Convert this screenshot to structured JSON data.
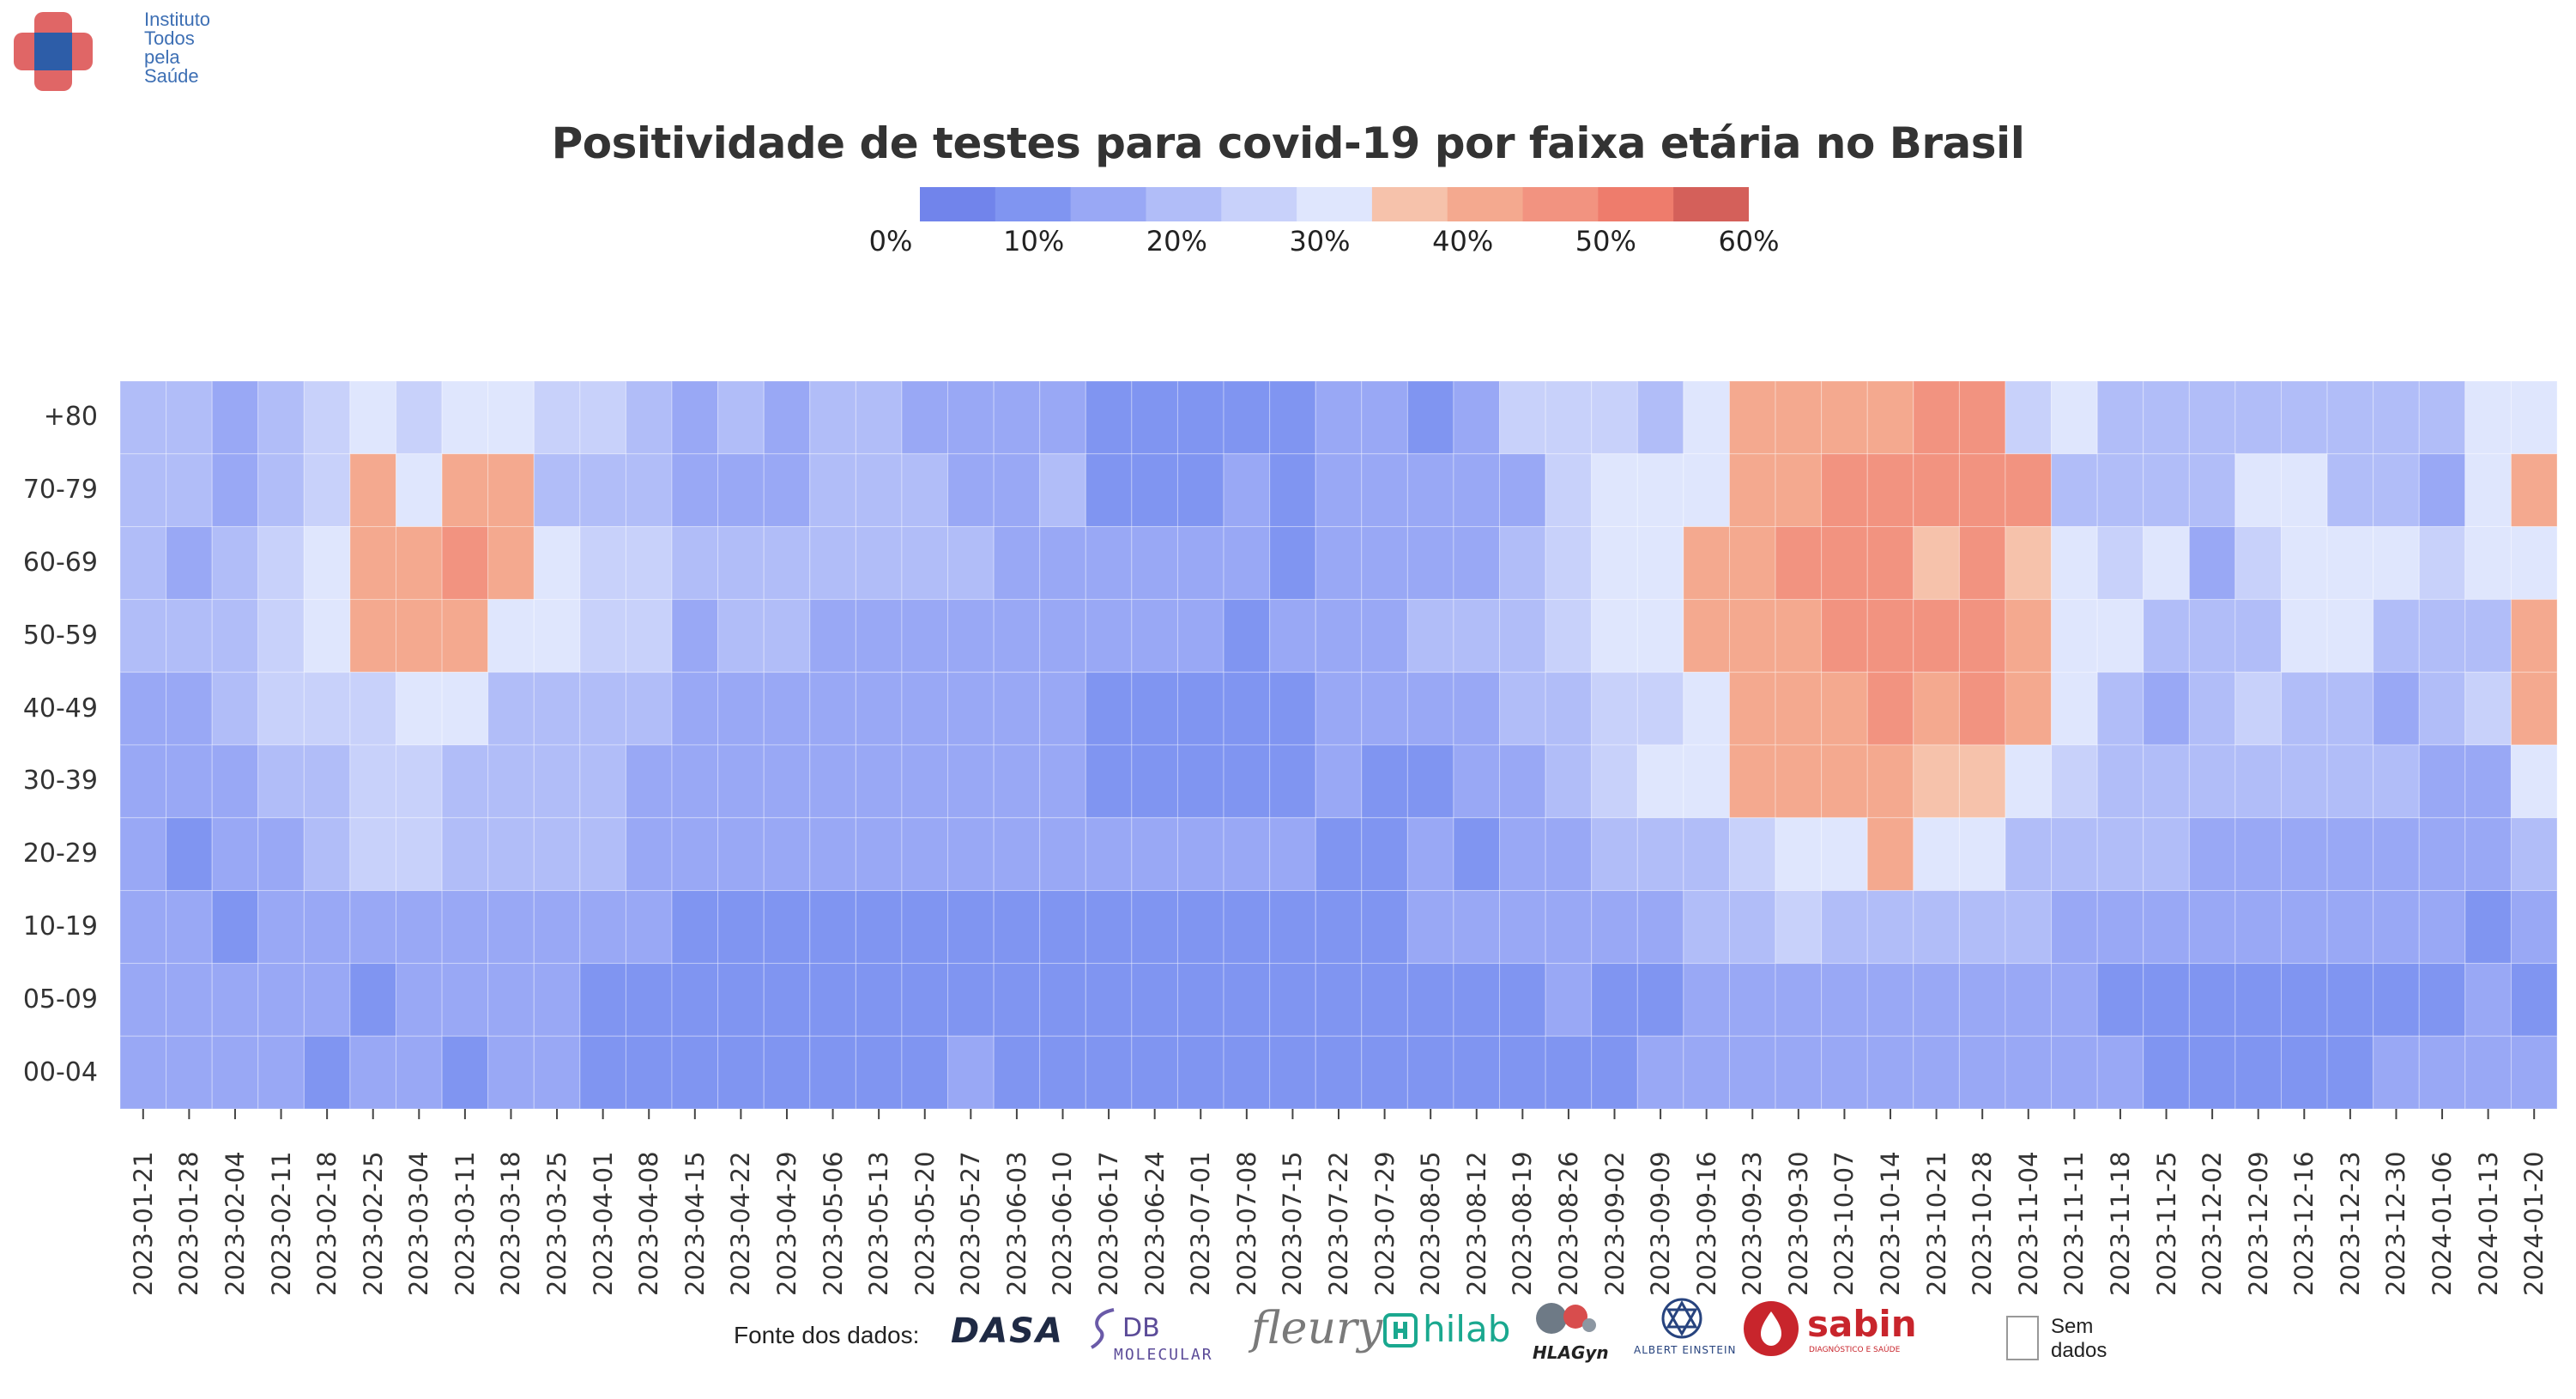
{
  "logo": {
    "lines": [
      "Instituto",
      "Todos",
      "pela",
      "Saúde"
    ],
    "colors": {
      "red": "#e06666",
      "blue": "#2d5da8"
    }
  },
  "chart_data": {
    "type": "heatmap",
    "title": "Positividade de testes para covid-19 por faixa etária no Brasil",
    "xlabel": "",
    "ylabel": "",
    "x": [
      "2023-01-21",
      "2023-01-28",
      "2023-02-04",
      "2023-02-11",
      "2023-02-18",
      "2023-02-25",
      "2023-03-04",
      "2023-03-11",
      "2023-03-18",
      "2023-03-25",
      "2023-04-01",
      "2023-04-08",
      "2023-04-15",
      "2023-04-22",
      "2023-04-29",
      "2023-05-06",
      "2023-05-13",
      "2023-05-20",
      "2023-05-27",
      "2023-06-03",
      "2023-06-10",
      "2023-06-17",
      "2023-06-24",
      "2023-07-01",
      "2023-07-08",
      "2023-07-15",
      "2023-07-22",
      "2023-07-29",
      "2023-08-05",
      "2023-08-12",
      "2023-08-19",
      "2023-08-26",
      "2023-09-02",
      "2023-09-09",
      "2023-09-16",
      "2023-09-23",
      "2023-09-30",
      "2023-10-07",
      "2023-10-14",
      "2023-10-21",
      "2023-10-28",
      "2023-11-04",
      "2023-11-11",
      "2023-11-18",
      "2023-11-25",
      "2023-12-02",
      "2023-12-09",
      "2023-12-16",
      "2023-12-23",
      "2023-12-30",
      "2024-01-06",
      "2024-01-13",
      "2024-01-20"
    ],
    "y": [
      "+80",
      "70-79",
      "60-69",
      "50-59",
      "40-49",
      "30-39",
      "20-29",
      "10-19",
      "05-09",
      "00-04"
    ],
    "values": [
      [
        17,
        17,
        16,
        21,
        23,
        28,
        27,
        28,
        29,
        27,
        24,
        20,
        15,
        18,
        14,
        17,
        18,
        16,
        14,
        14,
        13,
        9,
        9,
        9,
        8,
        9,
        12,
        13,
        8,
        11,
        25,
        24,
        23,
        18,
        29,
        41,
        39,
        39,
        39,
        44,
        44,
        22,
        29,
        21,
        17,
        20,
        20,
        19,
        20,
        20,
        17,
        29,
        29
      ],
      [
        17,
        17,
        16,
        17,
        22,
        40,
        29,
        40,
        40,
        20,
        17,
        18,
        16,
        13,
        13,
        17,
        18,
        18,
        16,
        16,
        17,
        9,
        9,
        9,
        11,
        9,
        12,
        12,
        14,
        14,
        16,
        25,
        30,
        30,
        30,
        42,
        42,
        44,
        44,
        45,
        49,
        45,
        20,
        18,
        20,
        20,
        28,
        28,
        21,
        19,
        16,
        28,
        40
      ],
      [
        17,
        16,
        17,
        22,
        29,
        39,
        39,
        46,
        41,
        28,
        22,
        22,
        18,
        18,
        17,
        17,
        17,
        17,
        17,
        16,
        16,
        16,
        12,
        12,
        13,
        8,
        12,
        14,
        13,
        13,
        17,
        25,
        30,
        30,
        39,
        43,
        47,
        48,
        48,
        37,
        44,
        38,
        28,
        22,
        28,
        16,
        24,
        28,
        28,
        28,
        25,
        28,
        29
      ],
      [
        17,
        17,
        21,
        22,
        29,
        39,
        39,
        41,
        28,
        28,
        24,
        23,
        16,
        17,
        17,
        16,
        13,
        14,
        16,
        14,
        16,
        12,
        12,
        13,
        9,
        13,
        12,
        14,
        19,
        19,
        21,
        25,
        28,
        28,
        39,
        40,
        43,
        47,
        46,
        44,
        44,
        40,
        29,
        29,
        21,
        20,
        21,
        28,
        28,
        20,
        19,
        21,
        40
      ],
      [
        14,
        15,
        17,
        22,
        22,
        27,
        28,
        28,
        21,
        21,
        19,
        19,
        16,
        15,
        15,
        15,
        15,
        14,
        12,
        12,
        13,
        9,
        9,
        9,
        9,
        9,
        11,
        14,
        13,
        13,
        17,
        21,
        26,
        26,
        28,
        40,
        42,
        43,
        44,
        39,
        45,
        39,
        28,
        21,
        16,
        21,
        27,
        20,
        20,
        15,
        21,
        22,
        40
      ],
      [
        14,
        14,
        14,
        17,
        21,
        22,
        22,
        21,
        21,
        17,
        17,
        15,
        14,
        14,
        14,
        14,
        14,
        14,
        12,
        12,
        12,
        9,
        9,
        9,
        9,
        9,
        11,
        10,
        10,
        13,
        14,
        17,
        27,
        28,
        28,
        39,
        39,
        39,
        39,
        38,
        38,
        28,
        22,
        17,
        21,
        17,
        17,
        17,
        17,
        17,
        16,
        13,
        28
      ],
      [
        11,
        9,
        13,
        13,
        17,
        22,
        22,
        17,
        17,
        19,
        19,
        16,
        14,
        11,
        14,
        14,
        11,
        11,
        11,
        11,
        11,
        11,
        11,
        11,
        11,
        11,
        7,
        9,
        11,
        9,
        13,
        15,
        18,
        18,
        20,
        22,
        28,
        28,
        39,
        28,
        28,
        20,
        18,
        17,
        17,
        15,
        15,
        15,
        15,
        15,
        16,
        16,
        20
      ],
      [
        11,
        11,
        9,
        14,
        14,
        14,
        14,
        14,
        14,
        14,
        11,
        11,
        7,
        7,
        7,
        8,
        6,
        6,
        6,
        6,
        6,
        6,
        6,
        6,
        6,
        6,
        6,
        6,
        11,
        11,
        13,
        14,
        14,
        16,
        18,
        18,
        22,
        20,
        20,
        21,
        18,
        17,
        15,
        14,
        12,
        12,
        12,
        12,
        12,
        12,
        14,
        6,
        16
      ],
      [
        11,
        11,
        11,
        11,
        14,
        9,
        12,
        12,
        12,
        11,
        9,
        9,
        9,
        9,
        9,
        9,
        9,
        9,
        9,
        9,
        9,
        9,
        9,
        9,
        9,
        9,
        9,
        9,
        7,
        7,
        7,
        12,
        7,
        7,
        12,
        14,
        12,
        14,
        14,
        14,
        12,
        15,
        12,
        9,
        7,
        9,
        6,
        6,
        6,
        6,
        6,
        11,
        6
      ],
      [
        11,
        11,
        11,
        11,
        7,
        11,
        11,
        7,
        11,
        11,
        9,
        9,
        9,
        9,
        9,
        9,
        9,
        9,
        11,
        9,
        9,
        9,
        9,
        9,
        9,
        9,
        9,
        9,
        9,
        9,
        9,
        7,
        6,
        11,
        11,
        11,
        11,
        11,
        11,
        11,
        11,
        11,
        11,
        11,
        10,
        6,
        9,
        9,
        9,
        11,
        15,
        11,
        15
      ]
    ],
    "color_scale": {
      "min": 0,
      "max": 60,
      "stops": [
        "#7184eb",
        "#8095f1",
        "#99a8f5",
        "#b1bdf8",
        "#c8d1fa",
        "#dfe6fd",
        "#f6c2ab",
        "#f4a98f",
        "#f29380",
        "#ee7c6c",
        "#d4605a"
      ],
      "ticks": [
        "0%",
        "10%",
        "20%",
        "30%",
        "40%",
        "50%",
        "60%"
      ]
    },
    "legend_position": "top-center",
    "grid": false
  },
  "footer": {
    "source_label": "Fonte dos dados:",
    "logos": [
      {
        "icon": "dasa-logo",
        "text": "DASA"
      },
      {
        "icon": "db-molecular-logo",
        "text": "DB",
        "subtext": "MOLECULAR"
      },
      {
        "icon": "fleury-logo",
        "text": "fleury"
      },
      {
        "icon": "hilab-logo",
        "text": "hilab"
      },
      {
        "icon": "hlagyn-logo",
        "text": "HLAGyn"
      },
      {
        "icon": "einstein-logo",
        "text": "ALBERT EINSTEIN"
      },
      {
        "icon": "sabin-logo",
        "text": "sabin",
        "subtext": "DIAGNÓSTICO E SAÚDE"
      }
    ],
    "no_data_label": [
      "Sem",
      "dados"
    ]
  }
}
